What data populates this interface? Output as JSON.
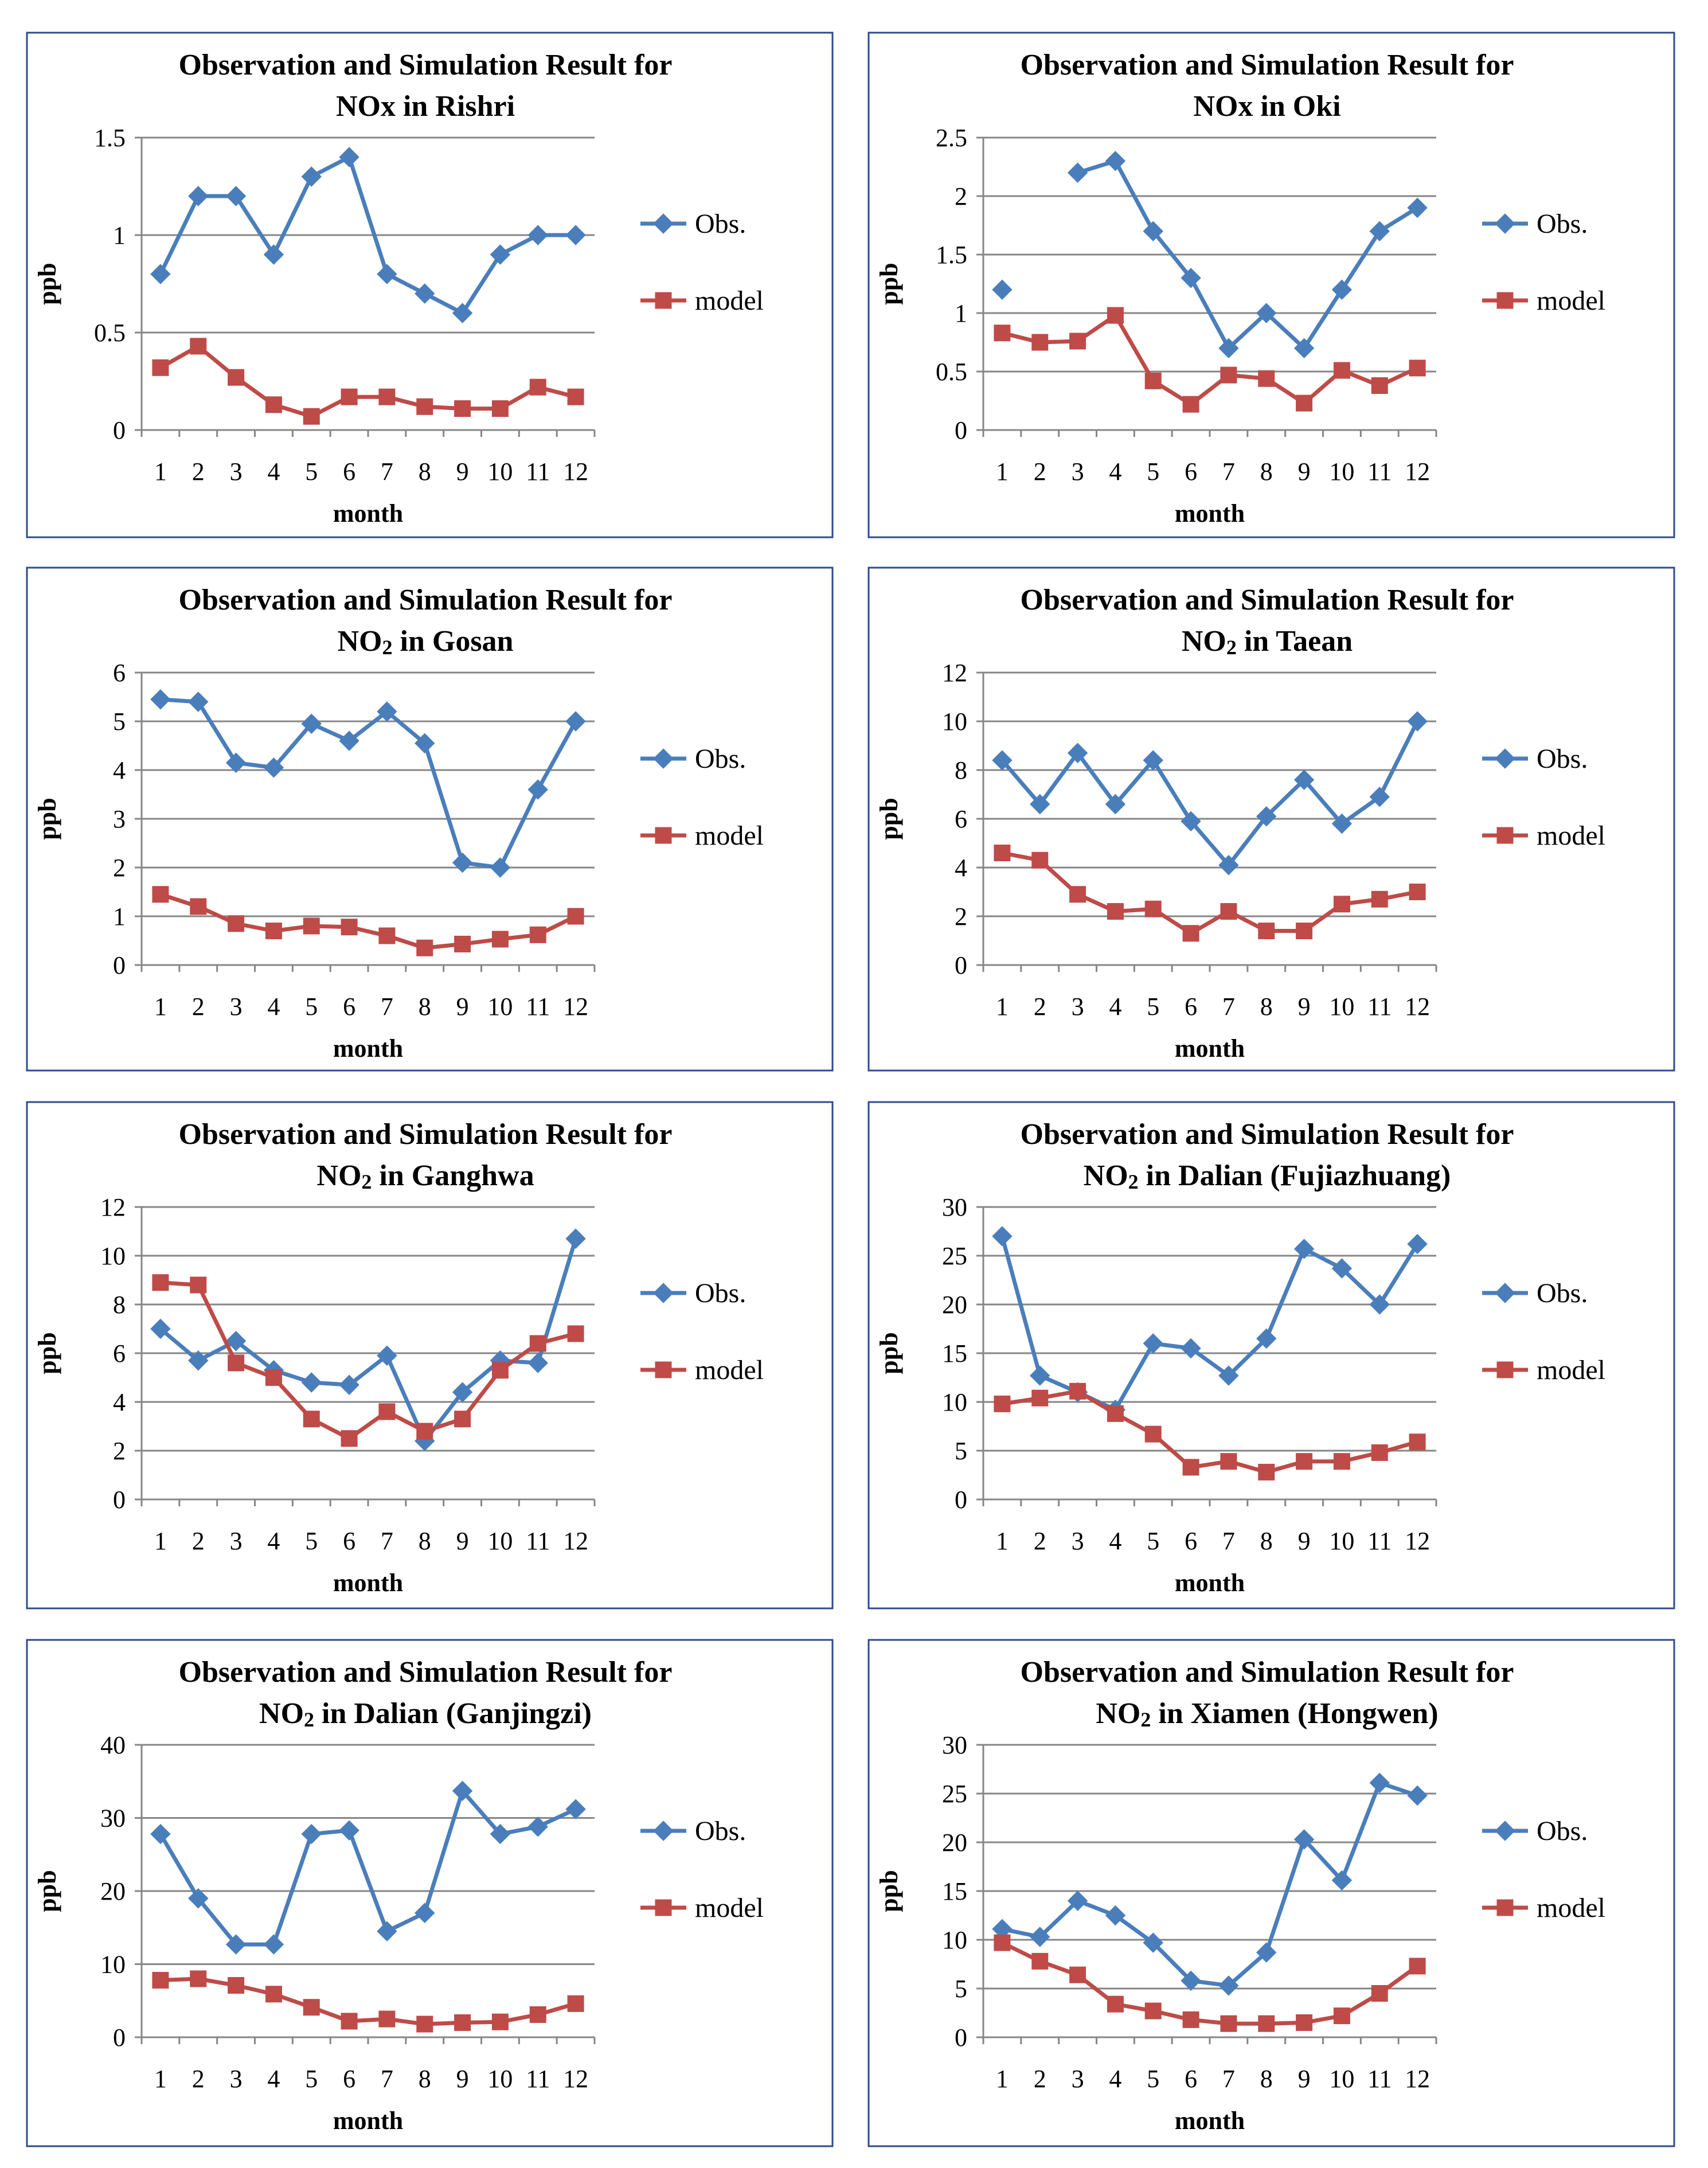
{
  "chart_data": [
    {
      "type": "line",
      "title_line1": "Observation and Simulation Result for",
      "title_line2": "NOx in Rishri",
      "xlabel": "month",
      "ylabel": "ppb",
      "categories": [
        "1",
        "2",
        "3",
        "4",
        "5",
        "6",
        "7",
        "8",
        "9",
        "10",
        "11",
        "12"
      ],
      "ylim": [
        0,
        1.5
      ],
      "yticks": [
        "0",
        "0.5",
        "1",
        "1.5"
      ],
      "grid": true,
      "legend_position": "right",
      "series": [
        {
          "name": "Obs.",
          "color": "#4A7EBB",
          "marker": "diamond",
          "values": [
            0.8,
            1.2,
            1.2,
            0.9,
            1.3,
            1.4,
            0.8,
            0.7,
            0.6,
            0.9,
            1.0,
            1.0
          ]
        },
        {
          "name": "model",
          "color": "#BE4B48",
          "marker": "square",
          "values": [
            0.32,
            0.43,
            0.27,
            0.13,
            0.07,
            0.17,
            0.17,
            0.12,
            0.11,
            0.11,
            0.22,
            0.17
          ]
        }
      ]
    },
    {
      "type": "line",
      "title_line1": "Observation and Simulation Result for",
      "title_line2": "NOx in Oki",
      "xlabel": "month",
      "ylabel": "ppb",
      "categories": [
        "1",
        "2",
        "3",
        "4",
        "5",
        "6",
        "7",
        "8",
        "9",
        "10",
        "11",
        "12"
      ],
      "ylim": [
        0,
        2.5
      ],
      "yticks": [
        "0",
        "0.5",
        "1",
        "1.5",
        "2",
        "2.5"
      ],
      "grid": true,
      "legend_position": "right",
      "series": [
        {
          "name": "Obs.",
          "color": "#4A7EBB",
          "marker": "diamond",
          "values": [
            1.2,
            null,
            2.2,
            2.3,
            1.7,
            1.3,
            0.7,
            1.0,
            0.7,
            1.2,
            1.7,
            1.9
          ]
        },
        {
          "name": "model",
          "color": "#BE4B48",
          "marker": "square",
          "values": [
            0.83,
            0.75,
            0.76,
            0.98,
            0.42,
            0.22,
            0.47,
            0.44,
            0.23,
            0.51,
            0.38,
            0.53
          ]
        }
      ]
    },
    {
      "type": "line",
      "title_line1": "Observation and Simulation Result for",
      "title_line2": "NO2 in Gosan",
      "xlabel": "month",
      "ylabel": "ppb",
      "categories": [
        "1",
        "2",
        "3",
        "4",
        "5",
        "6",
        "7",
        "8",
        "9",
        "10",
        "11",
        "12"
      ],
      "ylim": [
        0,
        6
      ],
      "yticks": [
        "0",
        "1",
        "2",
        "3",
        "4",
        "5",
        "6"
      ],
      "grid": true,
      "legend_position": "right",
      "series": [
        {
          "name": "Obs.",
          "color": "#4A7EBB",
          "marker": "diamond",
          "values": [
            5.45,
            5.4,
            4.15,
            4.05,
            4.95,
            4.6,
            5.2,
            4.55,
            2.1,
            2.0,
            3.6,
            5.0
          ]
        },
        {
          "name": "model",
          "color": "#BE4B48",
          "marker": "square",
          "values": [
            1.45,
            1.2,
            0.85,
            0.7,
            0.8,
            0.78,
            0.6,
            0.35,
            0.43,
            0.53,
            0.62,
            1.0
          ]
        }
      ]
    },
    {
      "type": "line",
      "title_line1": "Observation and Simulation Result for",
      "title_line2": "NO2 in Taean",
      "xlabel": "month",
      "ylabel": "ppb",
      "categories": [
        "1",
        "2",
        "3",
        "4",
        "5",
        "6",
        "7",
        "8",
        "9",
        "10",
        "11",
        "12"
      ],
      "ylim": [
        0,
        12
      ],
      "yticks": [
        "0",
        "2",
        "4",
        "6",
        "8",
        "10",
        "12"
      ],
      "grid": true,
      "legend_position": "right",
      "series": [
        {
          "name": "Obs.",
          "color": "#4A7EBB",
          "marker": "diamond",
          "values": [
            8.4,
            6.6,
            8.7,
            6.6,
            8.4,
            5.9,
            4.1,
            6.1,
            7.6,
            5.8,
            6.9,
            10.0
          ]
        },
        {
          "name": "model",
          "color": "#BE4B48",
          "marker": "square",
          "values": [
            4.6,
            4.3,
            2.9,
            2.2,
            2.3,
            1.3,
            2.2,
            1.4,
            1.4,
            2.5,
            2.7,
            3.0
          ]
        }
      ]
    },
    {
      "type": "line",
      "title_line1": "Observation and Simulation Result for",
      "title_line2": "NO2 in Ganghwa",
      "xlabel": "month",
      "ylabel": "ppb",
      "categories": [
        "1",
        "2",
        "3",
        "4",
        "5",
        "6",
        "7",
        "8",
        "9",
        "10",
        "11",
        "12"
      ],
      "ylim": [
        0,
        12
      ],
      "yticks": [
        "0",
        "2",
        "4",
        "6",
        "8",
        "10",
        "12"
      ],
      "grid": true,
      "legend_position": "right",
      "series": [
        {
          "name": "Obs.",
          "color": "#4A7EBB",
          "marker": "diamond",
          "values": [
            7.0,
            5.7,
            6.5,
            5.3,
            4.8,
            4.7,
            5.9,
            2.4,
            4.4,
            5.7,
            5.6,
            10.7
          ]
        },
        {
          "name": "model",
          "color": "#BE4B48",
          "marker": "square",
          "values": [
            8.9,
            8.8,
            5.6,
            5.0,
            3.3,
            2.5,
            3.6,
            2.8,
            3.3,
            5.3,
            6.4,
            6.8
          ]
        }
      ]
    },
    {
      "type": "line",
      "title_line1": "Observation and Simulation Result for",
      "title_line2": "NO2 in Dalian (Fujiazhuang)",
      "xlabel": "month",
      "ylabel": "ppb",
      "categories": [
        "1",
        "2",
        "3",
        "4",
        "5",
        "6",
        "7",
        "8",
        "9",
        "10",
        "11",
        "12"
      ],
      "ylim": [
        0,
        30
      ],
      "yticks": [
        "0",
        "5",
        "10",
        "15",
        "20",
        "25",
        "30"
      ],
      "grid": true,
      "legend_position": "right",
      "series": [
        {
          "name": "Obs.",
          "color": "#4A7EBB",
          "marker": "diamond",
          "values": [
            27.0,
            12.7,
            11.0,
            9.2,
            16.0,
            15.5,
            12.7,
            16.5,
            25.7,
            23.7,
            20.0,
            26.2
          ]
        },
        {
          "name": "model",
          "color": "#BE4B48",
          "marker": "square",
          "values": [
            9.8,
            10.4,
            11.1,
            8.8,
            6.7,
            3.3,
            3.9,
            2.8,
            3.9,
            3.9,
            4.8,
            5.9
          ]
        }
      ]
    },
    {
      "type": "line",
      "title_line1": "Observation and Simulation Result for",
      "title_line2": "NO2 in Dalian (Ganjingzi)",
      "xlabel": "month",
      "ylabel": "ppb",
      "categories": [
        "1",
        "2",
        "3",
        "4",
        "5",
        "6",
        "7",
        "8",
        "9",
        "10",
        "11",
        "12"
      ],
      "ylim": [
        0,
        40
      ],
      "yticks": [
        "0",
        "10",
        "20",
        "30",
        "40"
      ],
      "grid": true,
      "legend_position": "right",
      "series": [
        {
          "name": "Obs.",
          "color": "#4A7EBB",
          "marker": "diamond",
          "values": [
            27.8,
            19.0,
            12.7,
            12.7,
            27.8,
            28.3,
            14.5,
            17.0,
            33.7,
            27.8,
            28.8,
            31.2
          ]
        },
        {
          "name": "model",
          "color": "#BE4B48",
          "marker": "square",
          "values": [
            7.8,
            8.0,
            7.1,
            5.9,
            4.1,
            2.2,
            2.5,
            1.8,
            2.0,
            2.1,
            3.1,
            4.6
          ]
        }
      ]
    },
    {
      "type": "line",
      "title_line1": "Observation and Simulation Result for",
      "title_line2": "NO2 in Xiamen (Hongwen)",
      "xlabel": "month",
      "ylabel": "ppb",
      "categories": [
        "1",
        "2",
        "3",
        "4",
        "5",
        "6",
        "7",
        "8",
        "9",
        "10",
        "11",
        "12"
      ],
      "ylim": [
        0,
        30
      ],
      "yticks": [
        "0",
        "5",
        "10",
        "15",
        "20",
        "25",
        "30"
      ],
      "grid": true,
      "legend_position": "right",
      "series": [
        {
          "name": "Obs.",
          "color": "#4A7EBB",
          "marker": "diamond",
          "values": [
            11.1,
            10.3,
            14.0,
            12.5,
            9.7,
            5.8,
            5.3,
            8.7,
            20.3,
            16.1,
            26.1,
            24.8
          ]
        },
        {
          "name": "model",
          "color": "#BE4B48",
          "marker": "square",
          "values": [
            9.7,
            7.8,
            6.4,
            3.4,
            2.7,
            1.8,
            1.4,
            1.4,
            1.5,
            2.2,
            4.5,
            7.3
          ]
        }
      ]
    }
  ]
}
